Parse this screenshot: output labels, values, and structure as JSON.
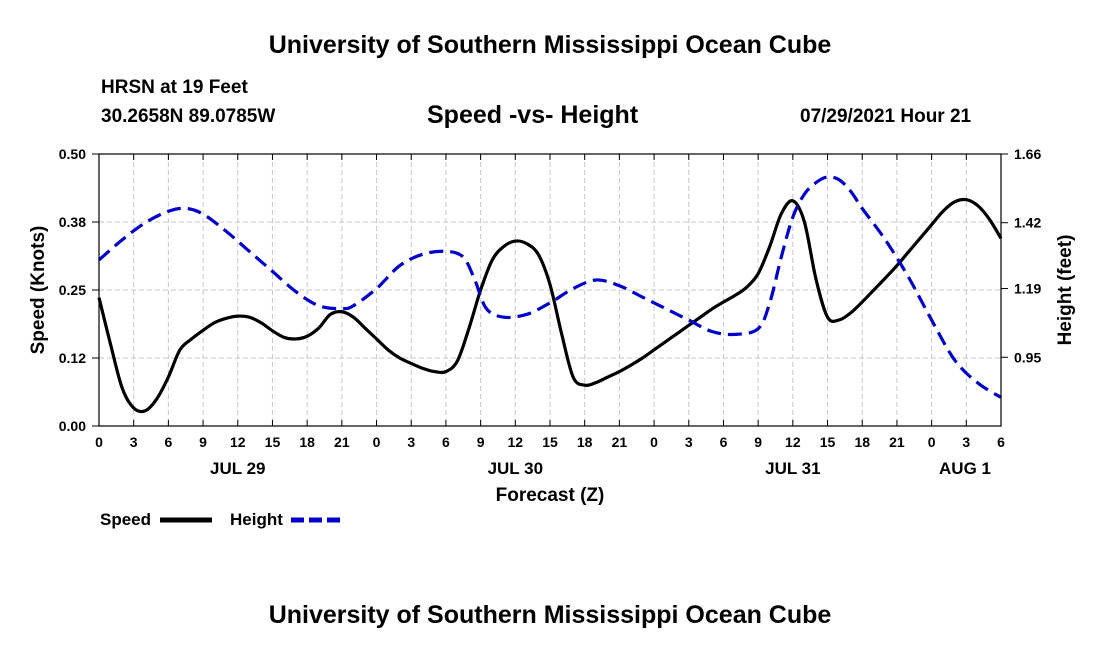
{
  "header": {
    "title": "University of Southern Mississippi Ocean Cube",
    "station": "HRSN at 19 Feet",
    "coords": "30.2658N  89.0785W",
    "subtitle": "Speed -vs- Height",
    "datetime": "07/29/2021 Hour 21"
  },
  "footer": {
    "title": "University of Southern Mississippi Ocean Cube"
  },
  "chart_data": {
    "type": "line",
    "title": "Speed -vs- Height",
    "xlabel": "Forecast (Z)",
    "ylabel": "Speed (Knots)",
    "y2label": "Height (feet)",
    "xlim": [
      0,
      78
    ],
    "ylim": [
      0,
      0.5
    ],
    "y2lim": [
      0.71,
      1.66
    ],
    "grid": true,
    "legend_position": "bottom-left",
    "x_ticks": [
      {
        "x": 0,
        "label": "0"
      },
      {
        "x": 3,
        "label": "3"
      },
      {
        "x": 6,
        "label": "6"
      },
      {
        "x": 9,
        "label": "9"
      },
      {
        "x": 12,
        "label": "12"
      },
      {
        "x": 15,
        "label": "15"
      },
      {
        "x": 18,
        "label": "18"
      },
      {
        "x": 21,
        "label": "21"
      },
      {
        "x": 24,
        "label": "0"
      },
      {
        "x": 27,
        "label": "3"
      },
      {
        "x": 30,
        "label": "6"
      },
      {
        "x": 33,
        "label": "9"
      },
      {
        "x": 36,
        "label": "12"
      },
      {
        "x": 39,
        "label": "15"
      },
      {
        "x": 42,
        "label": "18"
      },
      {
        "x": 45,
        "label": "21"
      },
      {
        "x": 48,
        "label": "0"
      },
      {
        "x": 51,
        "label": "3"
      },
      {
        "x": 54,
        "label": "6"
      },
      {
        "x": 57,
        "label": "9"
      },
      {
        "x": 60,
        "label": "12"
      },
      {
        "x": 63,
        "label": "15"
      },
      {
        "x": 66,
        "label": "18"
      },
      {
        "x": 69,
        "label": "21"
      },
      {
        "x": 72,
        "label": "0"
      },
      {
        "x": 75,
        "label": "3"
      },
      {
        "x": 78,
        "label": "6"
      }
    ],
    "date_labels": [
      {
        "x": 12,
        "label": "JUL 29"
      },
      {
        "x": 36,
        "label": "JUL 30"
      },
      {
        "x": 60,
        "label": "JUL 31"
      },
      {
        "x": 78,
        "label": "AUG 1"
      }
    ],
    "y_ticks": [
      {
        "value": 0.0,
        "label": "0.00"
      },
      {
        "value": 0.125,
        "label": "0.12"
      },
      {
        "value": 0.25,
        "label": "0.25"
      },
      {
        "value": 0.375,
        "label": "0.38"
      },
      {
        "value": 0.5,
        "label": "0.50"
      }
    ],
    "y2_ticks": [
      {
        "value": 0.95,
        "label": "0.95"
      },
      {
        "value": 1.19,
        "label": "1.19"
      },
      {
        "value": 1.42,
        "label": "1.42"
      },
      {
        "value": 1.66,
        "label": "1.66"
      }
    ],
    "series": [
      {
        "name": "Speed",
        "axis": "left",
        "color": "#000000",
        "style": "solid",
        "points": [
          [
            0,
            0.236
          ],
          [
            1,
            0.15
          ],
          [
            2,
            0.07
          ],
          [
            3,
            0.033
          ],
          [
            4,
            0.028
          ],
          [
            5,
            0.05
          ],
          [
            6,
            0.09
          ],
          [
            7,
            0.14
          ],
          [
            8,
            0.16
          ],
          [
            9,
            0.176
          ],
          [
            10,
            0.19
          ],
          [
            11,
            0.198
          ],
          [
            12,
            0.202
          ],
          [
            13,
            0.2
          ],
          [
            14,
            0.19
          ],
          [
            15,
            0.175
          ],
          [
            16,
            0.163
          ],
          [
            17,
            0.16
          ],
          [
            18,
            0.165
          ],
          [
            19,
            0.18
          ],
          [
            20,
            0.205
          ],
          [
            21,
            0.21
          ],
          [
            22,
            0.2
          ],
          [
            23,
            0.18
          ],
          [
            24,
            0.16
          ],
          [
            25,
            0.14
          ],
          [
            26,
            0.125
          ],
          [
            27,
            0.115
          ],
          [
            28,
            0.106
          ],
          [
            29,
            0.1
          ],
          [
            30,
            0.1
          ],
          [
            31,
            0.12
          ],
          [
            32,
            0.18
          ],
          [
            33,
            0.25
          ],
          [
            34,
            0.305
          ],
          [
            35,
            0.33
          ],
          [
            36,
            0.34
          ],
          [
            37,
            0.335
          ],
          [
            38,
            0.315
          ],
          [
            39,
            0.26
          ],
          [
            40,
            0.17
          ],
          [
            41,
            0.09
          ],
          [
            42,
            0.075
          ],
          [
            43,
            0.08
          ],
          [
            44,
            0.09
          ],
          [
            45,
            0.1
          ],
          [
            46,
            0.112
          ],
          [
            47,
            0.125
          ],
          [
            48,
            0.14
          ],
          [
            49,
            0.155
          ],
          [
            50,
            0.17
          ],
          [
            51,
            0.185
          ],
          [
            52,
            0.2
          ],
          [
            53,
            0.215
          ],
          [
            54,
            0.228
          ],
          [
            55,
            0.24
          ],
          [
            56,
            0.255
          ],
          [
            57,
            0.28
          ],
          [
            58,
            0.33
          ],
          [
            59,
            0.39
          ],
          [
            60,
            0.414
          ],
          [
            61,
            0.375
          ],
          [
            62,
            0.27
          ],
          [
            63,
            0.2
          ],
          [
            64,
            0.195
          ],
          [
            65,
            0.208
          ],
          [
            66,
            0.228
          ],
          [
            67,
            0.25
          ],
          [
            68,
            0.272
          ],
          [
            69,
            0.295
          ],
          [
            70,
            0.32
          ],
          [
            71,
            0.345
          ],
          [
            72,
            0.37
          ],
          [
            73,
            0.395
          ],
          [
            74,
            0.412
          ],
          [
            75,
            0.416
          ],
          [
            76,
            0.405
          ],
          [
            77,
            0.38
          ],
          [
            78,
            0.345
          ]
        ]
      },
      {
        "name": "Height",
        "axis": "right",
        "color": "#0000cc",
        "style": "dashed",
        "points": [
          [
            0,
            1.29
          ],
          [
            2,
            1.36
          ],
          [
            4,
            1.42
          ],
          [
            6,
            1.46
          ],
          [
            7.5,
            1.47
          ],
          [
            9,
            1.45
          ],
          [
            11,
            1.39
          ],
          [
            13,
            1.32
          ],
          [
            15,
            1.25
          ],
          [
            17,
            1.18
          ],
          [
            19,
            1.13
          ],
          [
            21,
            1.12
          ],
          [
            22,
            1.13
          ],
          [
            24,
            1.19
          ],
          [
            26,
            1.27
          ],
          [
            28,
            1.31
          ],
          [
            30,
            1.32
          ],
          [
            31.5,
            1.3
          ],
          [
            32.5,
            1.22
          ],
          [
            33.5,
            1.12
          ],
          [
            35,
            1.09
          ],
          [
            37,
            1.1
          ],
          [
            39,
            1.14
          ],
          [
            41,
            1.19
          ],
          [
            43,
            1.22
          ],
          [
            45,
            1.2
          ],
          [
            47,
            1.16
          ],
          [
            49,
            1.12
          ],
          [
            51,
            1.08
          ],
          [
            53,
            1.04
          ],
          [
            55,
            1.03
          ],
          [
            57,
            1.05
          ],
          [
            58,
            1.14
          ],
          [
            59,
            1.3
          ],
          [
            60,
            1.44
          ],
          [
            61,
            1.52
          ],
          [
            62,
            1.56
          ],
          [
            63,
            1.58
          ],
          [
            64,
            1.57
          ],
          [
            65,
            1.53
          ],
          [
            66,
            1.47
          ],
          [
            68,
            1.36
          ],
          [
            70,
            1.23
          ],
          [
            72,
            1.08
          ],
          [
            74,
            0.94
          ],
          [
            76,
            0.86
          ],
          [
            78,
            0.81
          ]
        ]
      }
    ]
  }
}
